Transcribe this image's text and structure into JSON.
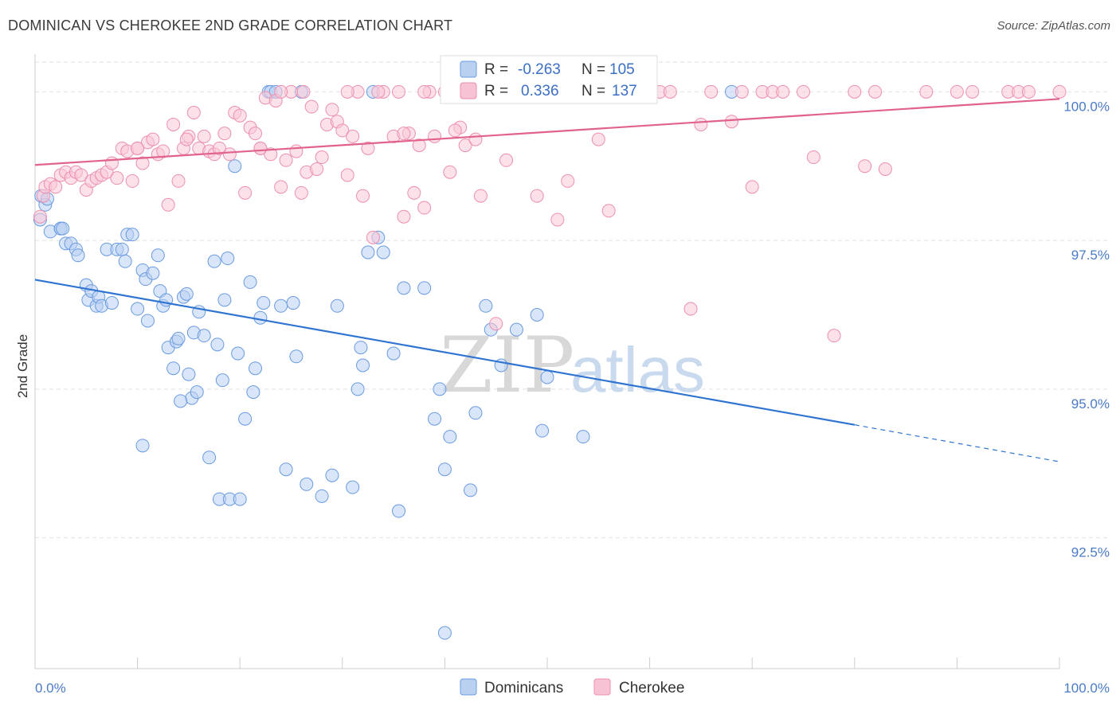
{
  "title": "DOMINICAN VS CHEROKEE 2ND GRADE CORRELATION CHART",
  "source": "Source: ZipAtlas.com",
  "watermark": {
    "zip": "ZIP",
    "atlas": "atlas"
  },
  "legend_top": {
    "r_label": "R =",
    "n_label": "N =",
    "rows": [
      {
        "r": "-0.263",
        "n": "105",
        "color": "#a8c4ec"
      },
      {
        "r": "0.336",
        "n": "137",
        "color": "#f5b3c8"
      }
    ]
  },
  "legend_bottom": [
    {
      "label": "Dominicans",
      "color": "#a8c4ec"
    },
    {
      "label": "Cherokee",
      "color": "#f5b3c8"
    }
  ],
  "chart_data": {
    "type": "scatter",
    "xlabel": "",
    "ylabel": "2nd Grade",
    "x_range": [
      0,
      100
    ],
    "y_range": [
      90.3,
      100.5
    ],
    "x_tick_labels": [
      "0.0%",
      "100.0%"
    ],
    "y_ticks": [
      {
        "value": 92.5,
        "label": "92.5%"
      },
      {
        "value": 95.0,
        "label": "95.0%"
      },
      {
        "value": 97.5,
        "label": "97.5%"
      },
      {
        "value": 100.0,
        "label": "100.0%"
      }
    ],
    "grid": "horizontal dashed",
    "series": [
      {
        "name": "Dominicans",
        "color": "#6a9be0",
        "fill": "#b9d0f2",
        "trend": {
          "x0": 0,
          "y0": 96.84,
          "x1": 80,
          "y1": 94.4,
          "dashed_to_x": 100,
          "dashed_to_y": 93.78,
          "color": "#2f74d0"
        },
        "points": [
          [
            0.5,
            97.85
          ],
          [
            0.6,
            98.25
          ],
          [
            1.0,
            98.1
          ],
          [
            1.2,
            98.2
          ],
          [
            1.5,
            97.65
          ],
          [
            2.5,
            97.7
          ],
          [
            2.5,
            97.7
          ],
          [
            2.7,
            97.7
          ],
          [
            3.0,
            97.45
          ],
          [
            3.5,
            97.45
          ],
          [
            4.0,
            97.35
          ],
          [
            4.2,
            97.25
          ],
          [
            5.0,
            96.75
          ],
          [
            5.2,
            96.5
          ],
          [
            5.5,
            96.65
          ],
          [
            6.0,
            96.4
          ],
          [
            6.2,
            96.55
          ],
          [
            6.5,
            96.4
          ],
          [
            7.0,
            97.35
          ],
          [
            7.5,
            96.45
          ],
          [
            8.0,
            97.35
          ],
          [
            8.5,
            97.35
          ],
          [
            8.8,
            97.15
          ],
          [
            9.0,
            97.6
          ],
          [
            9.5,
            97.6
          ],
          [
            10.0,
            96.35
          ],
          [
            10.5,
            97.0
          ],
          [
            10.8,
            96.85
          ],
          [
            11.0,
            96.15
          ],
          [
            11.5,
            96.95
          ],
          [
            12.0,
            97.25
          ],
          [
            12.2,
            96.65
          ],
          [
            12.5,
            96.4
          ],
          [
            12.8,
            96.5
          ],
          [
            13.0,
            95.7
          ],
          [
            13.5,
            95.35
          ],
          [
            13.8,
            95.8
          ],
          [
            14.0,
            95.85
          ],
          [
            14.5,
            96.55
          ],
          [
            14.8,
            96.6
          ],
          [
            15.0,
            95.25
          ],
          [
            15.3,
            94.85
          ],
          [
            15.5,
            95.95
          ],
          [
            15.8,
            94.95
          ],
          [
            16.0,
            96.3
          ],
          [
            16.5,
            95.9
          ],
          [
            17.0,
            93.85
          ],
          [
            17.5,
            97.15
          ],
          [
            17.8,
            95.75
          ],
          [
            18.0,
            93.15
          ],
          [
            18.3,
            95.15
          ],
          [
            18.5,
            96.5
          ],
          [
            18.8,
            97.2
          ],
          [
            19.0,
            93.15
          ],
          [
            19.5,
            98.75
          ],
          [
            19.8,
            95.6
          ],
          [
            20.0,
            93.15
          ],
          [
            20.5,
            94.5
          ],
          [
            21.0,
            96.8
          ],
          [
            21.3,
            94.95
          ],
          [
            21.5,
            95.35
          ],
          [
            22.0,
            96.2
          ],
          [
            22.3,
            96.45
          ],
          [
            22.8,
            100.0
          ],
          [
            23.0,
            100.0
          ],
          [
            23.5,
            100.0
          ],
          [
            24.0,
            96.4
          ],
          [
            24.5,
            93.65
          ],
          [
            25.2,
            96.45
          ],
          [
            25.5,
            95.55
          ],
          [
            26.0,
            100.0
          ],
          [
            26.5,
            93.4
          ],
          [
            28.0,
            93.2
          ],
          [
            29.0,
            93.55
          ],
          [
            29.5,
            96.4
          ],
          [
            31.0,
            93.35
          ],
          [
            31.5,
            95.0
          ],
          [
            31.8,
            95.7
          ],
          [
            32.0,
            95.4
          ],
          [
            32.5,
            97.3
          ],
          [
            33.0,
            100.0
          ],
          [
            33.5,
            97.55
          ],
          [
            34.0,
            97.3
          ],
          [
            35.0,
            95.6
          ],
          [
            35.5,
            92.95
          ],
          [
            36.0,
            96.7
          ],
          [
            38.0,
            96.7
          ],
          [
            39.0,
            94.5
          ],
          [
            39.5,
            95.0
          ],
          [
            40.0,
            93.65
          ],
          [
            40.5,
            94.2
          ],
          [
            42.5,
            93.3
          ],
          [
            43.0,
            94.6
          ],
          [
            44.0,
            96.4
          ],
          [
            44.5,
            96.0
          ],
          [
            45.5,
            95.4
          ],
          [
            47.0,
            96.0
          ],
          [
            49.0,
            96.25
          ],
          [
            49.5,
            94.3
          ],
          [
            50.0,
            95.2
          ],
          [
            53.5,
            94.2
          ],
          [
            68.0,
            100.0
          ],
          [
            40.0,
            90.9
          ],
          [
            14.2,
            94.8
          ],
          [
            10.5,
            94.05
          ]
        ]
      },
      {
        "name": "Cherokee",
        "color": "#ec8fb0",
        "fill": "#f9c8d7",
        "trend": {
          "x0": 0,
          "y0": 98.77,
          "x1": 100,
          "y1": 99.88,
          "color": "#e0628d"
        },
        "points": [
          [
            0.5,
            97.9
          ],
          [
            0.8,
            98.25
          ],
          [
            1.0,
            98.4
          ],
          [
            1.5,
            98.45
          ],
          [
            2.0,
            98.4
          ],
          [
            2.5,
            98.6
          ],
          [
            3.0,
            98.65
          ],
          [
            3.5,
            98.55
          ],
          [
            4.0,
            98.65
          ],
          [
            4.5,
            98.6
          ],
          [
            5.0,
            98.35
          ],
          [
            5.5,
            98.5
          ],
          [
            6.0,
            98.55
          ],
          [
            6.5,
            98.6
          ],
          [
            7.0,
            98.65
          ],
          [
            7.5,
            98.8
          ],
          [
            8.0,
            98.55
          ],
          [
            8.5,
            99.05
          ],
          [
            9.0,
            99.0
          ],
          [
            9.5,
            98.5
          ],
          [
            10.0,
            99.05
          ],
          [
            10.5,
            98.8
          ],
          [
            11.0,
            99.15
          ],
          [
            11.5,
            99.2
          ],
          [
            12.0,
            98.95
          ],
          [
            12.5,
            99.0
          ],
          [
            13.0,
            98.1
          ],
          [
            13.5,
            99.45
          ],
          [
            14.0,
            98.5
          ],
          [
            14.5,
            99.05
          ],
          [
            15.0,
            99.25
          ],
          [
            15.5,
            99.65
          ],
          [
            16.0,
            99.05
          ],
          [
            16.5,
            99.25
          ],
          [
            17.0,
            99.0
          ],
          [
            17.5,
            98.95
          ],
          [
            18.0,
            99.05
          ],
          [
            18.5,
            99.3
          ],
          [
            19.0,
            98.95
          ],
          [
            19.5,
            99.65
          ],
          [
            20.0,
            99.6
          ],
          [
            20.5,
            98.3
          ],
          [
            21.0,
            99.4
          ],
          [
            21.5,
            99.3
          ],
          [
            22.0,
            99.05
          ],
          [
            22.5,
            99.9
          ],
          [
            23.0,
            98.95
          ],
          [
            23.5,
            99.85
          ],
          [
            24.0,
            98.4
          ],
          [
            24.5,
            98.85
          ],
          [
            25.0,
            100.0
          ],
          [
            25.5,
            99.0
          ],
          [
            26.0,
            98.3
          ],
          [
            26.5,
            98.65
          ],
          [
            27.0,
            99.75
          ],
          [
            27.5,
            98.7
          ],
          [
            28.0,
            98.9
          ],
          [
            28.5,
            99.45
          ],
          [
            29.0,
            99.7
          ],
          [
            29.5,
            99.5
          ],
          [
            30.0,
            99.35
          ],
          [
            30.5,
            98.6
          ],
          [
            31.0,
            99.25
          ],
          [
            31.5,
            100.0
          ],
          [
            32.0,
            98.25
          ],
          [
            32.5,
            99.05
          ],
          [
            33.0,
            97.55
          ],
          [
            34.0,
            100.0
          ],
          [
            35.0,
            99.25
          ],
          [
            35.5,
            100.0
          ],
          [
            36.0,
            97.9
          ],
          [
            36.5,
            99.3
          ],
          [
            37.0,
            98.3
          ],
          [
            37.5,
            99.1
          ],
          [
            38.0,
            98.05
          ],
          [
            38.5,
            100.0
          ],
          [
            39.0,
            99.25
          ],
          [
            40.0,
            100.0
          ],
          [
            40.5,
            98.65
          ],
          [
            41.5,
            99.4
          ],
          [
            42.0,
            99.1
          ],
          [
            42.5,
            100.0
          ],
          [
            43.0,
            99.2
          ],
          [
            44.0,
            100.0
          ],
          [
            45.0,
            96.1
          ],
          [
            46.0,
            98.85
          ],
          [
            46.5,
            100.0
          ],
          [
            47.5,
            100.0
          ],
          [
            48.5,
            100.0
          ],
          [
            49.0,
            98.25
          ],
          [
            50.0,
            100.0
          ],
          [
            51.0,
            97.85
          ],
          [
            52.0,
            98.5
          ],
          [
            53.0,
            100.0
          ],
          [
            54.0,
            100.0
          ],
          [
            55.0,
            99.2
          ],
          [
            56.0,
            98.0
          ],
          [
            57.0,
            100.0
          ],
          [
            58.0,
            100.0
          ],
          [
            59.0,
            100.0
          ],
          [
            60.0,
            100.0
          ],
          [
            61.0,
            100.0
          ],
          [
            62.0,
            100.0
          ],
          [
            64.0,
            96.35
          ],
          [
            65.0,
            99.45
          ],
          [
            66.0,
            100.0
          ],
          [
            68.0,
            99.5
          ],
          [
            69.0,
            100.0
          ],
          [
            70.0,
            98.4
          ],
          [
            71.0,
            100.0
          ],
          [
            72.0,
            100.0
          ],
          [
            73.0,
            100.0
          ],
          [
            75.0,
            100.0
          ],
          [
            76.0,
            98.9
          ],
          [
            78.0,
            95.9
          ],
          [
            80.0,
            100.0
          ],
          [
            81.0,
            98.75
          ],
          [
            82.0,
            100.0
          ],
          [
            83.0,
            98.7
          ],
          [
            87.0,
            100.0
          ],
          [
            90.0,
            100.0
          ],
          [
            91.5,
            100.0
          ],
          [
            95.0,
            100.0
          ],
          [
            96.0,
            100.0
          ],
          [
            97.0,
            100.0
          ],
          [
            100.0,
            100.0
          ],
          [
            41.0,
            99.35
          ],
          [
            10.0,
            99.05
          ],
          [
            14.8,
            99.2
          ],
          [
            22.0,
            99.05
          ],
          [
            36.0,
            99.3
          ],
          [
            43.5,
            98.25
          ],
          [
            26.2,
            100.0
          ],
          [
            24.0,
            100.0
          ],
          [
            30.5,
            100.0
          ],
          [
            33.5,
            100.0
          ],
          [
            38.0,
            100.0
          ]
        ]
      }
    ]
  }
}
